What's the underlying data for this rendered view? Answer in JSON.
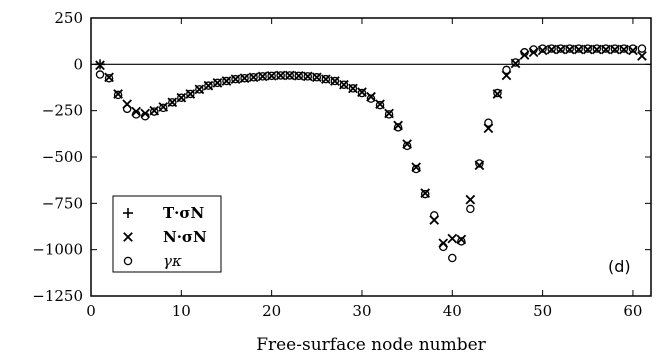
{
  "chart_data": {
    "type": "scatter",
    "xlabel": "Free-surface node number",
    "ylabel": "",
    "xlim": [
      0,
      62
    ],
    "ylim": [
      -1250,
      250
    ],
    "xticks": [
      0,
      10,
      20,
      30,
      40,
      50,
      60
    ],
    "yticks": [
      250,
      0,
      -250,
      -500,
      -750,
      -1000,
      -1250
    ],
    "grid": false,
    "legend_position": "bottom-left",
    "annotation": "(d)",
    "series": [
      {
        "name": "T·σN",
        "marker": "plus",
        "x": [
          1
        ],
        "y": [
          0
        ]
      },
      {
        "name": "N·σN",
        "marker": "x",
        "x": [
          1,
          2,
          3,
          4,
          5,
          6,
          7,
          8,
          9,
          10,
          11,
          12,
          13,
          14,
          15,
          16,
          17,
          18,
          19,
          20,
          21,
          22,
          23,
          24,
          25,
          26,
          27,
          28,
          29,
          30,
          31,
          32,
          33,
          34,
          35,
          36,
          37,
          38,
          39,
          40,
          41,
          42,
          43,
          44,
          45,
          46,
          47,
          48,
          49,
          50,
          51,
          52,
          53,
          54,
          55,
          56,
          57,
          58,
          59,
          60,
          61
        ],
        "y": [
          -5,
          -70,
          -160,
          -215,
          -255,
          -265,
          -250,
          -230,
          -205,
          -180,
          -160,
          -135,
          -115,
          -100,
          -90,
          -80,
          -75,
          -70,
          -65,
          -62,
          -60,
          -60,
          -62,
          -65,
          -70,
          -80,
          -90,
          -110,
          -130,
          -150,
          -175,
          -215,
          -265,
          -330,
          -430,
          -555,
          -695,
          -840,
          -965,
          -940,
          -945,
          -730,
          -545,
          -345,
          -160,
          -60,
          5,
          50,
          65,
          75,
          80,
          80,
          80,
          80,
          80,
          80,
          80,
          80,
          80,
          75,
          45
        ]
      },
      {
        "name": "γκ",
        "marker": "circle",
        "x": [
          1,
          2,
          3,
          4,
          5,
          6,
          7,
          8,
          9,
          10,
          11,
          12,
          13,
          14,
          15,
          16,
          17,
          18,
          19,
          20,
          21,
          22,
          23,
          24,
          25,
          26,
          27,
          28,
          29,
          30,
          31,
          32,
          33,
          34,
          35,
          36,
          37,
          38,
          39,
          40,
          41,
          42,
          43,
          44,
          45,
          46,
          47,
          48,
          49,
          50,
          51,
          52,
          53,
          54,
          55,
          56,
          57,
          58,
          59,
          60,
          61
        ],
        "y": [
          -55,
          -75,
          -165,
          -240,
          -270,
          -280,
          -255,
          -235,
          -205,
          -180,
          -160,
          -135,
          -115,
          -100,
          -90,
          -80,
          -75,
          -70,
          -65,
          -62,
          -60,
          -60,
          -62,
          -65,
          -70,
          -80,
          -90,
          -110,
          -130,
          -155,
          -185,
          -220,
          -270,
          -340,
          -440,
          -565,
          -700,
          -815,
          -985,
          -1045,
          -955,
          -780,
          -535,
          -315,
          -155,
          -30,
          10,
          65,
          80,
          85,
          85,
          85,
          85,
          85,
          85,
          85,
          85,
          85,
          85,
          85,
          85
        ]
      }
    ]
  }
}
